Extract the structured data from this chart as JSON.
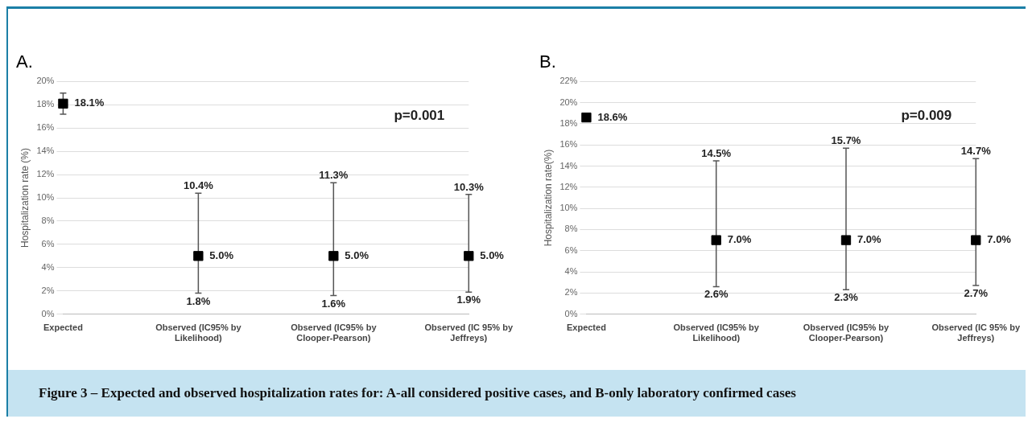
{
  "chart_data": [
    {
      "type": "scatter",
      "title": "A.",
      "ylabel": "Hospitalization rate (%)",
      "categories": [
        "Expected",
        "Observed (IC95% by Likelihood)",
        "Observed (IC95% by Clooper-Pearson)",
        "Observed (IC 95% by Jeffreys)"
      ],
      "series": [
        {
          "color": "#000000",
          "values": [
            18.1,
            5.0,
            5.0,
            5.0
          ],
          "errors": [
            [
              17.2,
              19.0
            ],
            [
              1.8,
              10.4
            ],
            [
              1.6,
              11.3
            ],
            [
              1.9,
              10.3
            ]
          ],
          "value_labels": [
            "18.1%",
            "5.0%",
            "5.0%",
            "5.0%"
          ]
        }
      ],
      "ylim": [
        0,
        20
      ],
      "yticks": [
        {
          "value": 0,
          "label": "0%"
        },
        {
          "value": 2,
          "label": "2%"
        },
        {
          "value": 4,
          "label": "4%"
        },
        {
          "value": 6,
          "label": "6%"
        },
        {
          "value": 8,
          "label": "8%"
        },
        {
          "value": 10,
          "label": "10%"
        },
        {
          "value": 12,
          "label": "12%"
        },
        {
          "value": 14,
          "label": "14%"
        },
        {
          "value": 16,
          "label": "16%"
        },
        {
          "value": 18,
          "label": "18%"
        },
        {
          "value": 20,
          "label": "20%"
        }
      ],
      "grid": "y",
      "legend": false,
      "marker": "square",
      "annotations": [
        "p=0.001",
        {
          "text": "10.4%",
          "x": "Observed (IC95% by Likelihood)",
          "y": 10.4
        },
        {
          "text": "1.8%",
          "x": "Observed (IC95% by Likelihood)",
          "y": 1.8
        },
        {
          "text": "11.3%",
          "x": "Observed (IC95% by Clooper-Pearson)",
          "y": 11.3
        },
        {
          "text": "1.6%",
          "x": "Observed (IC95% by Clooper-Pearson)",
          "y": 1.6
        },
        {
          "text": "10.3%",
          "x": "Observed (IC 95% by Jeffreys)",
          "y": 10.3
        },
        {
          "text": "1.9%",
          "x": "Observed (IC 95% by Jeffreys)",
          "y": 1.9
        },
        "Figure 3 – Expected and observed hospitalization rates for: A-all considered positive cases, and B-only laboratory confirmed cases"
      ]
    },
    {
      "type": "scatter",
      "title": "B.",
      "ylabel": "Hospitalization rate(%)",
      "categories": [
        "Expected",
        "Observed (IC95% by Likelihood)",
        "Observed (IC95% by Clooper-Pearson)",
        "Observed (IC 95% by Jeffreys)"
      ],
      "series": [
        {
          "color": "#000000",
          "values": [
            18.6,
            7.0,
            7.0,
            7.0
          ],
          "errors": [
            null,
            [
              2.6,
              14.5
            ],
            [
              2.3,
              15.7
            ],
            [
              2.7,
              14.7
            ]
          ],
          "value_labels": [
            "18.6%",
            "7.0%",
            "7.0%",
            "7.0%"
          ]
        }
      ],
      "ylim": [
        0,
        22
      ],
      "yticks": [
        {
          "value": 0,
          "label": "0%"
        },
        {
          "value": 2,
          "label": "2%"
        },
        {
          "value": 4,
          "label": "4%"
        },
        {
          "value": 6,
          "label": "6%"
        },
        {
          "value": 8,
          "label": "8%"
        },
        {
          "value": 10,
          "label": "10%"
        },
        {
          "value": 12,
          "label": "12%"
        },
        {
          "value": 14,
          "label": "14%"
        },
        {
          "value": 16,
          "label": "16%"
        },
        {
          "value": 18,
          "label": "18%"
        },
        {
          "value": 20,
          "label": "20%"
        },
        {
          "value": 22,
          "label": "22%"
        }
      ],
      "grid": "y",
      "legend": false,
      "marker": "square",
      "annotations": [
        "p=0.009",
        {
          "text": "14.5%",
          "x": "Observed (IC95% by Likelihood)",
          "y": 14.5
        },
        {
          "text": "2.6%",
          "x": "Observed (IC95% by Likelihood)",
          "y": 2.6
        },
        {
          "text": "15.7%",
          "x": "Observed (IC95% by Clooper-Pearson)",
          "y": 15.7
        },
        {
          "text": "2.3%",
          "x": "Observed (IC95% by Clooper-Pearson)",
          "y": 2.3
        },
        {
          "text": "14.7%",
          "x": "Observed (IC 95% by Jeffreys)",
          "y": 14.7
        },
        {
          "text": "2.7%",
          "x": "Observed (IC 95% by Jeffreys)",
          "y": 2.7
        }
      ]
    }
  ]
}
